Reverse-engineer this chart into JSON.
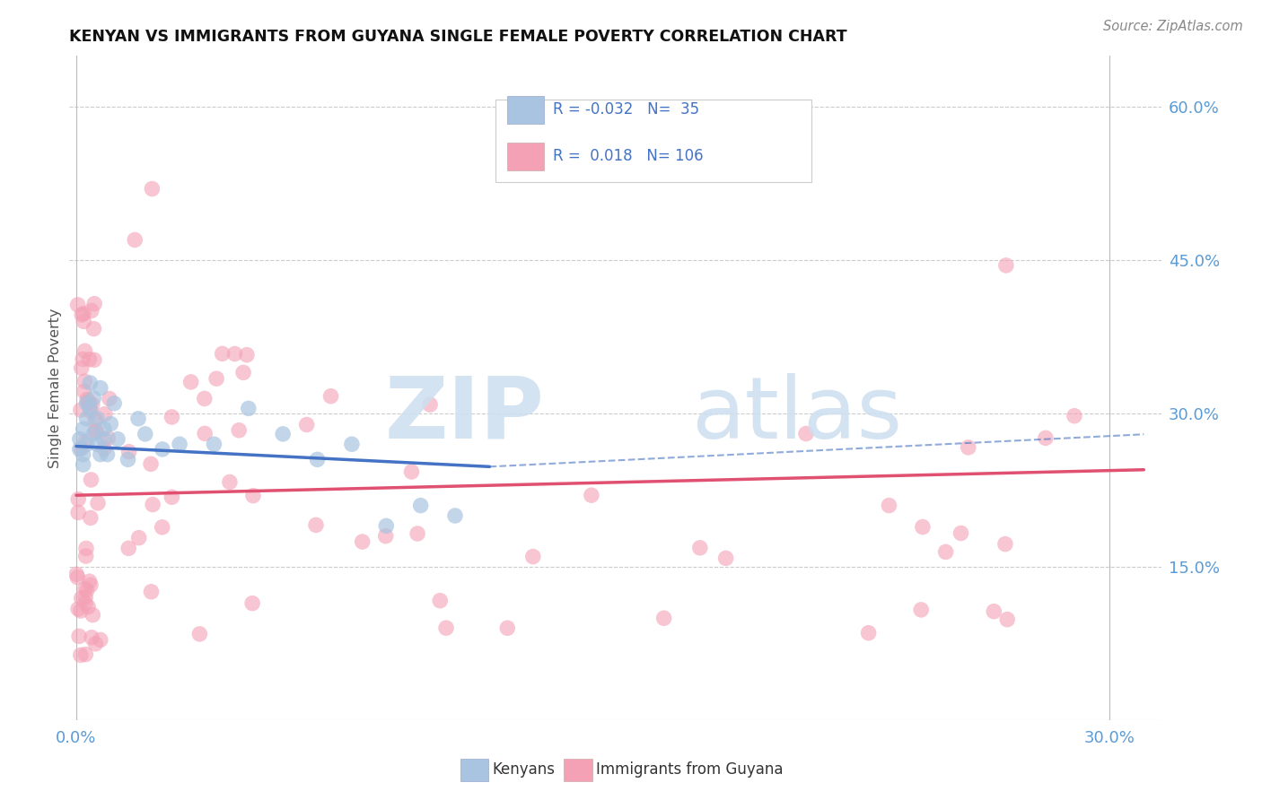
{
  "title": "KENYAN VS IMMIGRANTS FROM GUYANA SINGLE FEMALE POVERTY CORRELATION CHART",
  "source": "Source: ZipAtlas.com",
  "ylabel": "Single Female Poverty",
  "color_kenyan": "#a8c4e0",
  "color_guyana": "#f4a0b5",
  "color_kenyan_line": "#4472c4",
  "color_guyana_line": "#e05070",
  "xmin": -0.002,
  "xmax": 0.315,
  "ymin": 0.0,
  "ymax": 0.65,
  "yticks": [
    0.15,
    0.3,
    0.45,
    0.6
  ],
  "ytick_labels": [
    "15.0%",
    "30.0%",
    "45.0%",
    "60.0%"
  ],
  "xticks": [
    0.0,
    0.3
  ],
  "xtick_labels": [
    "0.0%",
    "30.0%"
  ],
  "legend_items": [
    {
      "label": "R = -0.032   N=  35",
      "color": "#a8c4e0"
    },
    {
      "label": "R =  0.018   N= 106",
      "color": "#f4a0b5"
    }
  ],
  "bottom_legend": [
    "Kenyans",
    "Immigrants from Guyana"
  ],
  "watermark_zip": "ZIP",
  "watermark_atlas": "atlas"
}
